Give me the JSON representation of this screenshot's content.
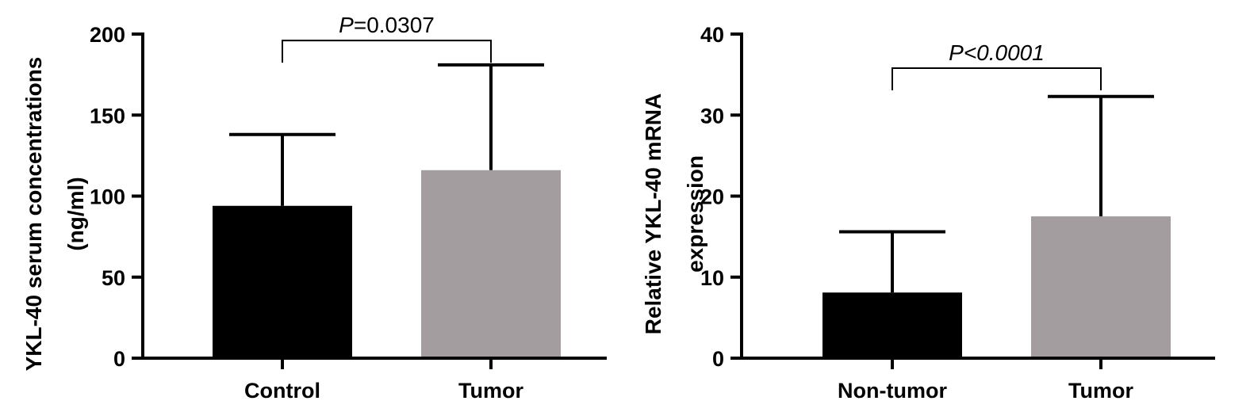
{
  "chart_data": [
    {
      "type": "bar",
      "categories": [
        "Control",
        "Tumor"
      ],
      "values": [
        94,
        116
      ],
      "errors": [
        44,
        65
      ],
      "colors": [
        "#000000",
        "#a39da0"
      ],
      "ylabel": "YKL-40 serum concentrations\n(ng/ml)",
      "ylim": [
        0,
        200
      ],
      "yticks": [
        0,
        50,
        100,
        150,
        200
      ],
      "significance": {
        "text_italic": "P",
        "text_rest": "=0.0307",
        "between": [
          0,
          1
        ],
        "y": 196
      },
      "grid": false
    },
    {
      "type": "bar",
      "categories": [
        "Non-tumor",
        "Tumor"
      ],
      "values": [
        8.1,
        17.5
      ],
      "errors": [
        7.5,
        14.8
      ],
      "colors": [
        "#000000",
        "#a39da0"
      ],
      "ylabel": "Relative YKL-40 mRNA\nexpression",
      "ylim": [
        0,
        40
      ],
      "yticks": [
        0,
        10,
        20,
        30,
        40
      ],
      "significance": {
        "text_italic": "P<0.0001",
        "text_rest": "",
        "between": [
          0,
          1
        ],
        "y": 35.8
      },
      "grid": false
    }
  ]
}
